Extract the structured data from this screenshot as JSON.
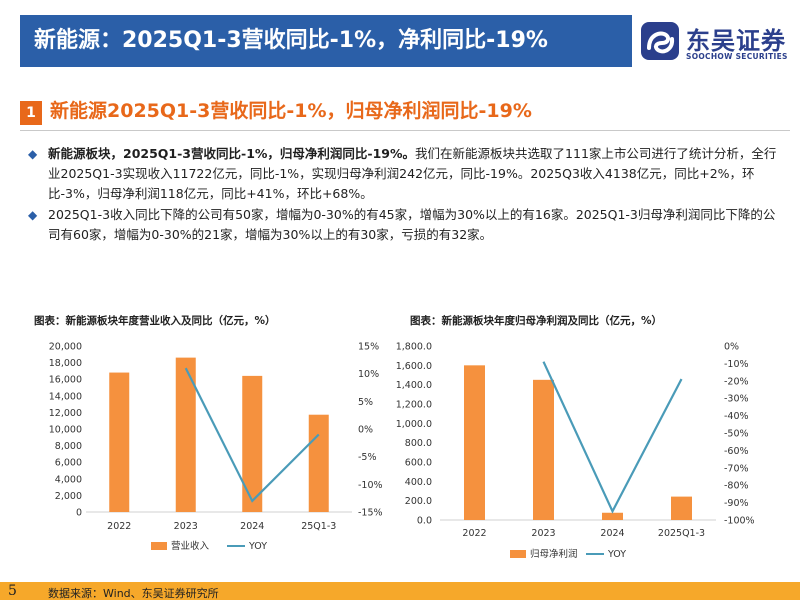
{
  "header": {
    "title": "新能源：2025Q1-3营收同比-1%，净利同比-19%"
  },
  "logo": {
    "cn": "东吴证券",
    "en": "SOOCHOW SECURITIES"
  },
  "section": {
    "number": "1",
    "title": "新能源2025Q1-3营收同比-1%，归母净利润同比-19%"
  },
  "bullets": [
    {
      "bold": "新能源板块，2025Q1-3营收同比-1%，归母净利润同比-19%。",
      "text": "我们在新能源板块共选取了111家上市公司进行了统计分析，全行业2025Q1-3实现收入11722亿元，同比-1%，实现归母净利润242亿元，同比-19%。2025Q3收入4138亿元，同比+2%，环比-3%，归母净利润118亿元，同比+41%，环比+68%。"
    },
    {
      "bold": "",
      "text": "2025Q1-3收入同比下降的公司有50家，增幅为0-30%的有45家，增幅为30%以上的有16家。2025Q1-3归母净利润同比下降的公司有60家，增幅为0-30%的21家，增幅为30%以上的有30家，亏损的有32家。"
    }
  ],
  "colors": {
    "header": "#2b5fa8",
    "accent": "#e8681a",
    "bar": "#f5913e",
    "line": "#4a9bb8",
    "footer": "#f6a82a"
  },
  "chart_data": [
    {
      "type": "bar",
      "title": "图表：新能源板块年度营业收入及同比（亿元，%）",
      "categories": [
        "2022",
        "2023",
        "2024",
        "25Q1-3"
      ],
      "series": [
        {
          "name": "营业收入",
          "type": "bar",
          "axis": "left",
          "values": [
            16800,
            18600,
            16400,
            11722
          ]
        },
        {
          "name": "YOY",
          "type": "line",
          "axis": "right",
          "values": [
            null,
            11,
            -13,
            -1
          ]
        }
      ],
      "left_axis": {
        "ylim": [
          0,
          20000
        ],
        "ticks": [
          "0",
          "2,000",
          "4,000",
          "6,000",
          "8,000",
          "10,000",
          "12,000",
          "14,000",
          "16,000",
          "18,000",
          "20,000"
        ]
      },
      "right_axis": {
        "ylim": [
          -15,
          15
        ],
        "ticks": [
          "-15%",
          "-10%",
          "-5%",
          "0%",
          "5%",
          "10%",
          "15%"
        ]
      },
      "legend": "bottom"
    },
    {
      "type": "bar",
      "title": "图表：新能源板块年度归母净利润及同比（亿元，%）",
      "categories": [
        "2022",
        "2023",
        "2024",
        "2025Q1-3"
      ],
      "series": [
        {
          "name": "归母净利润",
          "type": "bar",
          "axis": "left",
          "values": [
            1600,
            1450,
            75,
            242
          ]
        },
        {
          "name": "YOY",
          "type": "line",
          "axis": "right",
          "values": [
            null,
            -9,
            -95,
            -19
          ]
        }
      ],
      "left_axis": {
        "ylim": [
          0,
          1800
        ],
        "ticks": [
          "0.0",
          "200.0",
          "400.0",
          "600.0",
          "800.0",
          "1,000.0",
          "1,200.0",
          "1,400.0",
          "1,600.0",
          "1,800.0"
        ]
      },
      "right_axis": {
        "ylim": [
          -100,
          0
        ],
        "ticks": [
          "-100%",
          "-90%",
          "-80%",
          "-70%",
          "-60%",
          "-50%",
          "-40%",
          "-30%",
          "-20%",
          "-10%",
          "0%"
        ]
      },
      "legend": "bottom"
    }
  ],
  "footer": {
    "page": "5",
    "source": "数据来源：Wind、东吴证券研究所"
  }
}
